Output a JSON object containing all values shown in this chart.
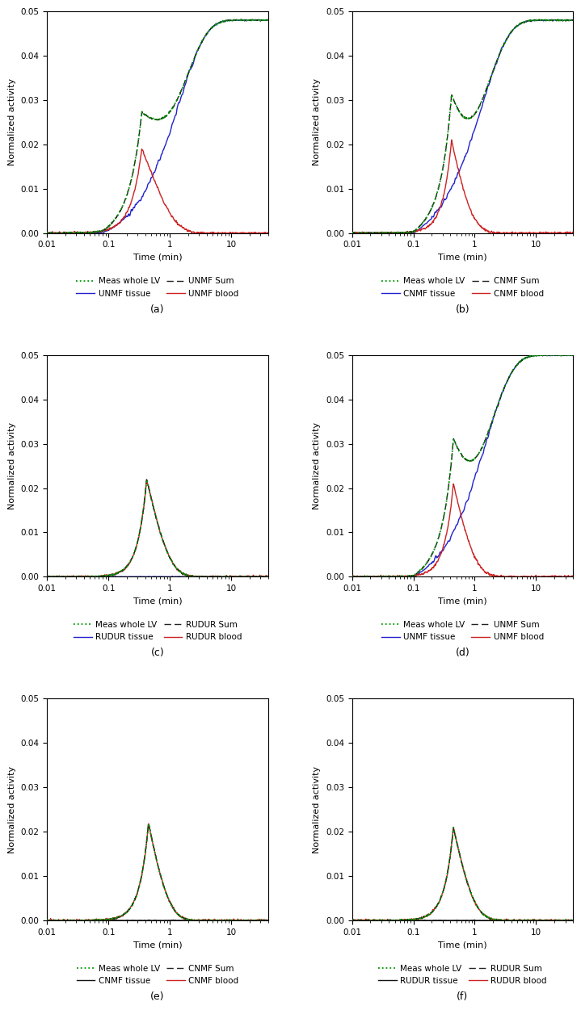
{
  "panels": [
    {
      "label": "(a)",
      "tissue_color": "#2222cc",
      "blood_color": "#cc2222",
      "tissue_label": "UNMF tissue",
      "blood_label": "UNMF blood",
      "sum_label": "UNMF Sum"
    },
    {
      "label": "(b)",
      "tissue_color": "#2222cc",
      "blood_color": "#cc2222",
      "tissue_label": "CNMF tissue",
      "blood_label": "CNMF blood",
      "sum_label": "CNMF Sum"
    },
    {
      "label": "(c)",
      "tissue_color": "#2222cc",
      "blood_color": "#cc2222",
      "tissue_label": "RUDUR tissue",
      "blood_label": "RUDUR blood",
      "sum_label": "RUDUR Sum"
    },
    {
      "label": "(d)",
      "tissue_color": "#2222cc",
      "blood_color": "#cc2222",
      "tissue_label": "UNMF tissue",
      "blood_label": "UNMF blood",
      "sum_label": "UNMF Sum"
    },
    {
      "label": "(e)",
      "tissue_color": "#111111",
      "blood_color": "#cc2222",
      "tissue_label": "CNMF tissue",
      "blood_label": "CNMF blood",
      "sum_label": "CNMF Sum"
    },
    {
      "label": "(f)",
      "tissue_color": "#111111",
      "blood_color": "#cc2222",
      "tissue_label": "RUDUR tissue",
      "blood_label": "RUDUR blood",
      "sum_label": "RUDUR Sum"
    }
  ],
  "xlim": [
    0.01,
    40
  ],
  "ylim": [
    0.0,
    0.05
  ],
  "yticks": [
    0.0,
    0.01,
    0.02,
    0.03,
    0.04,
    0.05
  ],
  "xlabel": "Time (min)",
  "ylabel": "Normalized activity",
  "meas_lv_color": "#009900",
  "meas_lv_label": "Meas whole LV",
  "sum_color": "#222222",
  "background_color": "#ffffff"
}
